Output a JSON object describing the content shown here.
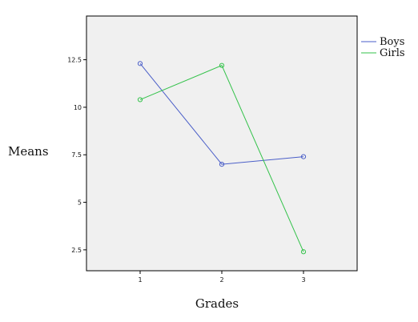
{
  "chart_data": {
    "type": "line",
    "title": "",
    "xlabel": "Grades",
    "ylabel": "Means",
    "categories": [
      "1",
      "2",
      "3"
    ],
    "y_ticks": [
      "2.5",
      "5",
      "7.5",
      "10",
      "12.5"
    ],
    "ylim": [
      1.4,
      14.8
    ],
    "grid": false,
    "legend_position": "right-top",
    "background": "#f0f0f0",
    "series": [
      {
        "name": "Boys",
        "color": "#4a5ec8",
        "values": [
          12.3,
          7.0,
          7.4
        ]
      },
      {
        "name": "Girls",
        "color": "#33c24a",
        "values": [
          10.4,
          12.2,
          2.4
        ]
      }
    ]
  }
}
